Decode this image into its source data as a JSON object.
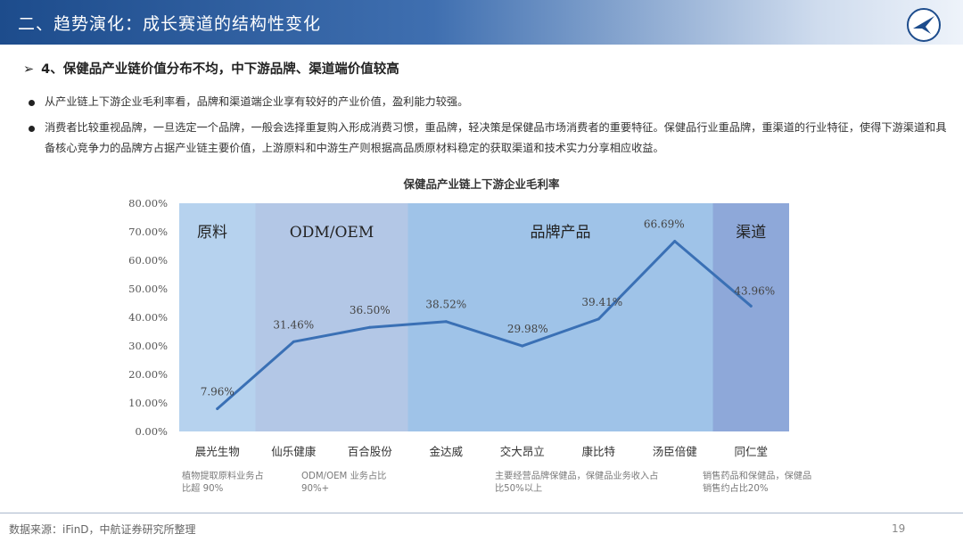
{
  "header": {
    "title": "二、趋势演化：成长赛道的结构性变化"
  },
  "section": {
    "arrow": "➢",
    "title": "4、保健品产业链价值分布不均，中下游品牌、渠道端价值较高"
  },
  "bullets": [
    "从产业链上下游企业毛利率看，品牌和渠道端企业享有较好的产业价值，盈利能力较强。",
    "消费者比较重视品牌，一旦选定一个品牌，一般会选择重复购入形成消费习惯，重品牌，轻决策是保健品市场消费者的重要特征。保健品行业重品牌，重渠道的行业特征，使得下游渠道和具备核心竞争力的品牌方占据产业链主要价值，上游原料和中游生产则根据高品质原材料稳定的获取渠道和技术实力分享相应收益。"
  ],
  "chart_data": {
    "type": "line",
    "title": "保健品产业链上下游企业毛利率",
    "categories": [
      "晨光生物",
      "仙乐健康",
      "百合股份",
      "金达威",
      "交大昂立",
      "康比特",
      "汤臣倍健",
      "同仁堂"
    ],
    "values": [
      7.96,
      31.46,
      36.5,
      38.52,
      29.98,
      39.41,
      66.69,
      43.96
    ],
    "data_labels": [
      "7.96%",
      "31.46%",
      "36.50%",
      "38.52%",
      "29.98%",
      "39.41%",
      "66.69%",
      "43.96%"
    ],
    "ylim": [
      0,
      80
    ],
    "yticks": [
      "0.00%",
      "10.00%",
      "20.00%",
      "30.00%",
      "40.00%",
      "50.00%",
      "60.00%",
      "70.00%",
      "80.00%"
    ],
    "series_color": "#3a70b5",
    "segments": [
      {
        "label": "原料",
        "from": 0,
        "to": 0,
        "color": "#b6d2ee"
      },
      {
        "label": "ODM/OEM",
        "from": 1,
        "to": 2,
        "color": "#b3c7e6"
      },
      {
        "label": "品牌产品",
        "from": 3,
        "to": 6,
        "color": "#9fc3e8"
      },
      {
        "label": "渠道",
        "from": 7,
        "to": 7,
        "color": "#8ea8d9"
      }
    ],
    "notes": [
      {
        "text": "植物提取原料业务占比超 90%",
        "segment": 0
      },
      {
        "text": "ODM/OEM 业务占比90%+",
        "segment": 1
      },
      {
        "text": "主要经营品牌保健品，保健品业务收入占比50%以上",
        "segment": 2
      },
      {
        "text": "销售药品和保健品，保健品销售约占比20%",
        "segment": 3
      }
    ]
  },
  "footer": {
    "source": "数据来源：iFinD，中航证券研究所整理",
    "page": "19"
  }
}
